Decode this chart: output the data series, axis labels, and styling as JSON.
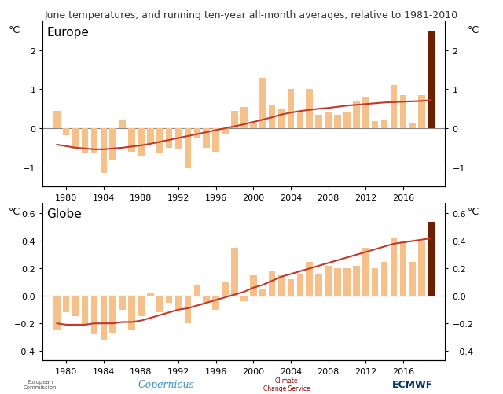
{
  "title": "June temperatures, and running ten-year all-month averages, relative to 1981-2010",
  "years": [
    1979,
    1980,
    1981,
    1982,
    1983,
    1984,
    1985,
    1986,
    1987,
    1988,
    1989,
    1990,
    1991,
    1992,
    1993,
    1994,
    1995,
    1996,
    1997,
    1998,
    1999,
    2000,
    2001,
    2002,
    2003,
    2004,
    2005,
    2006,
    2007,
    2008,
    2009,
    2010,
    2011,
    2012,
    2013,
    2014,
    2015,
    2016,
    2017,
    2018,
    2019
  ],
  "europe_bars": [
    0.45,
    -0.18,
    -0.55,
    -0.65,
    -0.65,
    -1.15,
    -0.8,
    0.22,
    -0.6,
    -0.7,
    -0.4,
    -0.65,
    -0.5,
    -0.55,
    -1.0,
    -0.25,
    -0.5,
    -0.6,
    -0.15,
    0.45,
    0.55,
    0.12,
    1.3,
    0.6,
    0.5,
    1.0,
    0.42,
    1.0,
    0.35,
    0.42,
    0.35,
    0.42,
    0.7,
    0.8,
    0.18,
    0.2,
    1.1,
    0.85,
    0.15,
    0.85,
    2.5
  ],
  "europe_line": [
    -0.42,
    -0.46,
    -0.5,
    -0.52,
    -0.54,
    -0.54,
    -0.52,
    -0.5,
    -0.47,
    -0.44,
    -0.4,
    -0.35,
    -0.3,
    -0.25,
    -0.2,
    -0.15,
    -0.1,
    -0.05,
    0.0,
    0.05,
    0.1,
    0.16,
    0.22,
    0.28,
    0.35,
    0.4,
    0.44,
    0.47,
    0.5,
    0.52,
    0.55,
    0.58,
    0.6,
    0.62,
    0.64,
    0.66,
    0.67,
    0.68,
    0.69,
    0.7,
    0.72
  ],
  "globe_bars": [
    -0.25,
    -0.12,
    -0.15,
    -0.22,
    -0.28,
    -0.32,
    -0.27,
    -0.1,
    -0.25,
    -0.15,
    0.02,
    -0.12,
    -0.05,
    -0.1,
    -0.2,
    0.08,
    -0.05,
    -0.1,
    0.1,
    0.35,
    -0.04,
    0.15,
    0.05,
    0.18,
    0.15,
    0.12,
    0.16,
    0.25,
    0.16,
    0.22,
    0.2,
    0.2,
    0.22,
    0.35,
    0.2,
    0.25,
    0.42,
    0.4,
    0.25,
    0.4,
    0.54
  ],
  "globe_line": [
    -0.2,
    -0.21,
    -0.21,
    -0.21,
    -0.2,
    -0.2,
    -0.2,
    -0.19,
    -0.19,
    -0.18,
    -0.16,
    -0.14,
    -0.12,
    -0.1,
    -0.09,
    -0.07,
    -0.05,
    -0.03,
    -0.01,
    0.01,
    0.03,
    0.06,
    0.08,
    0.11,
    0.14,
    0.16,
    0.18,
    0.2,
    0.22,
    0.24,
    0.26,
    0.28,
    0.3,
    0.32,
    0.34,
    0.36,
    0.38,
    0.39,
    0.4,
    0.41,
    0.42
  ],
  "bar_color": "#F5C08A",
  "bar_color_last": "#6B2000",
  "line_color": "#C0392B",
  "zero_line_color": "#888888",
  "europe_ylim": [
    -1.5,
    2.75
  ],
  "globe_ylim": [
    -0.47,
    0.68
  ],
  "europe_yticks": [
    -1,
    0,
    1,
    2
  ],
  "globe_yticks": [
    -0.4,
    -0.2,
    0,
    0.2,
    0.4,
    0.6
  ],
  "xticks": [
    1980,
    1984,
    1988,
    1992,
    1996,
    2000,
    2004,
    2008,
    2012,
    2016
  ],
  "title_fontsize": 9,
  "label_fontsize": 11,
  "tick_fontsize": 8,
  "yaxis_label_fontsize": 9,
  "europe_label": "Europe",
  "globe_label": "Globe",
  "yaxis_label": "°C",
  "bar_width": 0.72,
  "xlim": [
    1977.5,
    2020.5
  ]
}
